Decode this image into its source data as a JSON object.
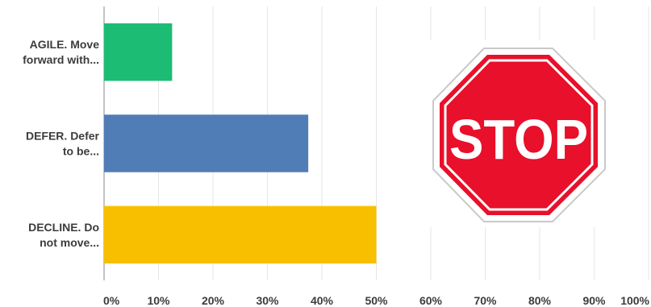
{
  "chart_data": {
    "type": "bar",
    "orientation": "horizontal",
    "categories": [
      "AGILE. Move forward with...",
      "DEFER. Defer to be...",
      "DECLINE. Do not move..."
    ],
    "category_label_lines": [
      [
        "AGILE. Move",
        "forward with..."
      ],
      [
        "DEFER. Defer",
        "to be..."
      ],
      [
        "DECLINE. Do",
        "not move..."
      ]
    ],
    "values": [
      12.5,
      37.5,
      50
    ],
    "bar_colors": [
      "#1cbc74",
      "#507db5",
      "#f8bf00"
    ],
    "x_ticks": [
      "0%",
      "10%",
      "20%",
      "30%",
      "40%",
      "50%",
      "60%",
      "70%",
      "80%",
      "90%",
      "100%"
    ],
    "xlim": [
      0,
      100
    ],
    "grid": true,
    "title": "",
    "xlabel": "",
    "ylabel": ""
  },
  "overlay": {
    "sign_text": "STOP",
    "sign_color": "#e8102a",
    "icon": "stop-sign-icon"
  }
}
